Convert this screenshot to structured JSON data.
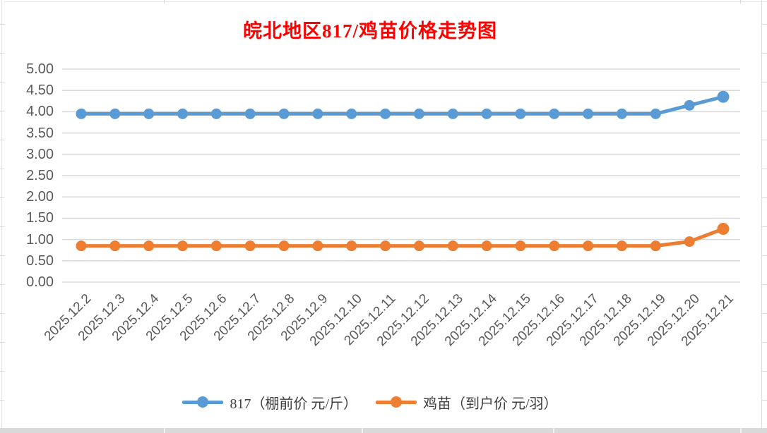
{
  "title": {
    "text": "皖北地区817/鸡苗价格走势图",
    "color": "#FF0000"
  },
  "chart_data": {
    "type": "line",
    "categories": [
      "2025.12.2",
      "2025.12.3",
      "2025.12.4",
      "2025.12.5",
      "2025.12.6",
      "2025.12.7",
      "2025.12.8",
      "2025.12.9",
      "2025.12.10",
      "2025.12.11",
      "2025.12.12",
      "2025.12.13",
      "2025.12.14",
      "2025.12.15",
      "2025.12.16",
      "2025.12.17",
      "2025.12.18",
      "2025.12.19",
      "2025.12.20",
      "2025.12.21"
    ],
    "series": [
      {
        "name": "817（棚前价 元/斤）",
        "color": "#5B9BD5",
        "values": [
          3.95,
          3.95,
          3.95,
          3.95,
          3.95,
          3.95,
          3.95,
          3.95,
          3.95,
          3.95,
          3.95,
          3.95,
          3.95,
          3.95,
          3.95,
          3.95,
          3.95,
          3.95,
          4.15,
          4.35
        ]
      },
      {
        "name": "鸡苗（到户价 元/羽）",
        "color": "#ED7D31",
        "values": [
          0.85,
          0.85,
          0.85,
          0.85,
          0.85,
          0.85,
          0.85,
          0.85,
          0.85,
          0.85,
          0.85,
          0.85,
          0.85,
          0.85,
          0.85,
          0.85,
          0.85,
          0.85,
          0.95,
          1.25
        ]
      }
    ],
    "title": "皖北地区817/鸡苗价格走势图",
    "xlabel": "",
    "ylabel": "",
    "ylim": [
      0,
      5
    ],
    "ytick_step": 0.5,
    "y_tick_labels": [
      "5.00",
      "4.50",
      "4.00",
      "3.50",
      "3.00",
      "2.50",
      "2.00",
      "1.50",
      "1.00",
      "0.50",
      "0.00"
    ],
    "x_label_rotation": -45,
    "grid": true,
    "legend_position": "bottom"
  },
  "style": {
    "gridline_color": "#D9D9D9",
    "axis_label_color": "#595959",
    "legend_text_color": "#404040",
    "background": "#FFFFFF"
  }
}
